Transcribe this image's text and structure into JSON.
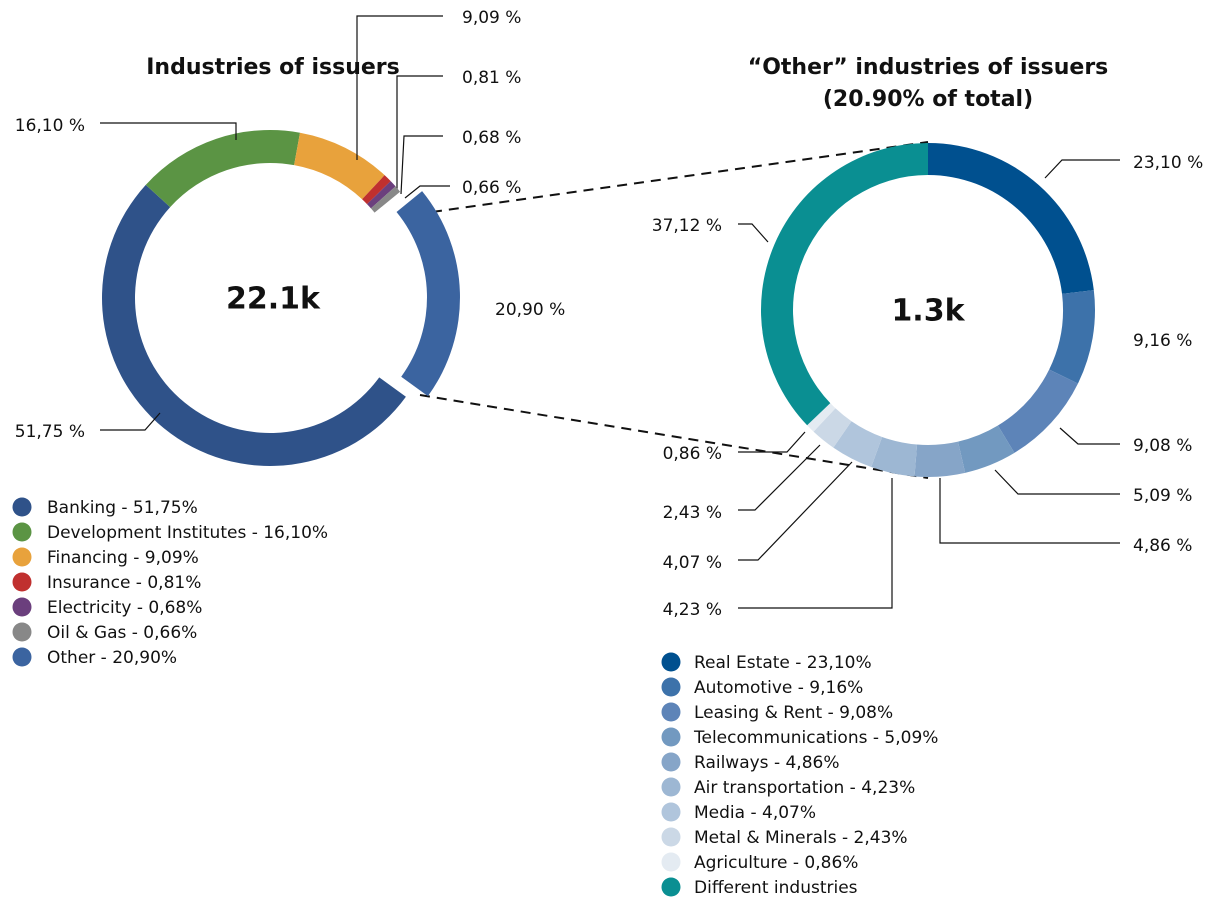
{
  "chart_data": [
    {
      "type": "pie",
      "title": "Industries of issuers",
      "center_label": "22.1k",
      "categories": [
        "Banking - 51,75%",
        "Development Institutes - 16,10%",
        "Financing - 9,09%",
        "Insurance - 0,81%",
        "Electricity - 0,68%",
        "Oil & Gas - 0,66%",
        "Other - 20,90%"
      ],
      "values": [
        51.75,
        16.1,
        9.09,
        0.81,
        0.68,
        0.66,
        20.9
      ],
      "value_labels": [
        "51,75 %",
        "16,10 %",
        "9,09 %",
        "0,81 %",
        "0,68 %",
        "0,66 %",
        "20,90 %"
      ],
      "colors": [
        "#2f5289",
        "#5b9444",
        "#e8a23c",
        "#c0302f",
        "#6b3f7d",
        "#888888",
        "#3b64a0"
      ]
    },
    {
      "type": "pie",
      "title": "“Other” industries of issuers",
      "subtitle": "(20.90% of total)",
      "center_label": "1.3k",
      "categories": [
        "Real Estate - 23,10%",
        "Automotive - 9,16%",
        "Leasing & Rent - 9,08%",
        "Telecommunications - 5,09%",
        "Railways - 4,86%",
        "Air transportation - 4,23%",
        "Media - 4,07%",
        "Metal & Minerals - 2,43%",
        "Agriculture - 0,86%",
        "Different industries"
      ],
      "values": [
        23.1,
        9.16,
        9.08,
        5.09,
        4.86,
        4.23,
        4.07,
        2.43,
        0.86,
        37.12
      ],
      "value_labels": [
        "23,10 %",
        "9,16 %",
        "9,08 %",
        "5,09 %",
        "4,86 %",
        "4,23 %",
        "4,07 %",
        "2,43 %",
        "0,86 %",
        "37,12 %"
      ],
      "colors": [
        "#00508f",
        "#3d72aa",
        "#5d84b8",
        "#7299c0",
        "#86a5c8",
        "#9db7d3",
        "#b0c5dc",
        "#cbd8e6",
        "#e4ebf2",
        "#0a8f92"
      ]
    }
  ]
}
